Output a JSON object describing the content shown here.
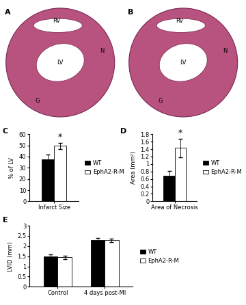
{
  "images": [
    {
      "panel": "A",
      "labels": [
        "RV",
        "LV",
        "N",
        "G"
      ]
    },
    {
      "panel": "B",
      "labels": [
        "RV",
        "LV",
        "N",
        "G"
      ]
    }
  ],
  "chart_data": [
    {
      "panel": "C",
      "type": "bar",
      "categories": [
        "Infarct Size"
      ],
      "y_label": "% of LV",
      "series": [
        {
          "name": "WT",
          "color": "#000000",
          "values": [
            37.5
          ],
          "errors": [
            4.0
          ]
        },
        {
          "name": "EphA2-R-M",
          "color": "#ffffff",
          "values": [
            49.5
          ],
          "errors": [
            3.0
          ]
        }
      ],
      "ylim": [
        0,
        60
      ],
      "yticks": [
        0,
        10,
        20,
        30,
        40,
        50,
        60
      ],
      "legend": "right",
      "annotations": [
        {
          "text": "*",
          "series": "EphA2-R-M",
          "category": "Infarct Size"
        }
      ]
    },
    {
      "panel": "D",
      "type": "bar",
      "categories": [
        "Area of Necrosis"
      ],
      "y_label": "Area (mm²)",
      "series": [
        {
          "name": "WT",
          "color": "#000000",
          "values": [
            0.68
          ],
          "errors": [
            0.13
          ]
        },
        {
          "name": "EphA2-R-M",
          "color": "#ffffff",
          "values": [
            1.43
          ],
          "errors": [
            0.25
          ]
        }
      ],
      "ylim": [
        0,
        1.8
      ],
      "yticks": [
        0,
        0.2,
        0.4,
        0.6,
        0.8,
        1,
        1.2,
        1.4,
        1.6,
        1.8
      ],
      "legend": "right",
      "annotations": [
        {
          "text": "*",
          "series": "EphA2-R-M",
          "category": "Area of Necrosis"
        }
      ]
    },
    {
      "panel": "E",
      "type": "bar",
      "categories": [
        "Control",
        "4 days post-MI"
      ],
      "y_label": "LVID (mm)",
      "series": [
        {
          "name": "WT",
          "color": "#000000",
          "values": [
            1.5,
            2.3
          ],
          "errors": [
            0.08,
            0.1
          ]
        },
        {
          "name": "EphA2-R-M",
          "color": "#ffffff",
          "values": [
            1.45,
            2.28
          ],
          "errors": [
            0.08,
            0.09
          ]
        }
      ],
      "ylim": [
        0,
        3
      ],
      "yticks": [
        0,
        0.5,
        1,
        1.5,
        2,
        2.5,
        3
      ],
      "legend": "right",
      "annotations": []
    }
  ]
}
